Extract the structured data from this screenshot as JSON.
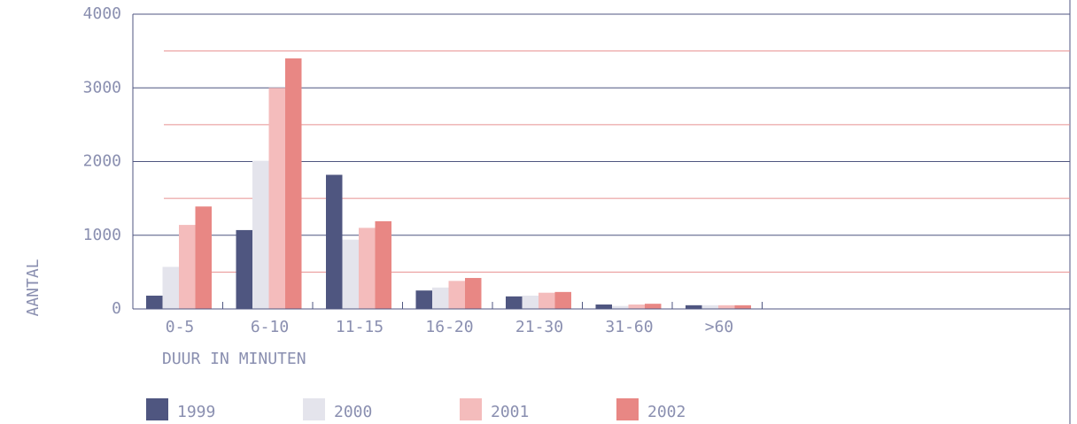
{
  "chart_data": {
    "type": "bar",
    "categories": [
      "0-5",
      "6-10",
      "11-15",
      "16-20",
      "21-30",
      "31-60",
      ">60"
    ],
    "series": [
      {
        "name": "1999",
        "color": "#4f5680",
        "values": [
          180,
          1070,
          1820,
          250,
          170,
          60,
          50
        ]
      },
      {
        "name": "2000",
        "color": "#e4e4ec",
        "values": [
          570,
          2010,
          940,
          290,
          180,
          40,
          50
        ]
      },
      {
        "name": "2001",
        "color": "#f4bcbc",
        "values": [
          1140,
          3000,
          1100,
          380,
          220,
          60,
          50
        ]
      },
      {
        "name": "2002",
        "color": "#e88784",
        "values": [
          1390,
          3400,
          1190,
          420,
          230,
          70,
          50
        ]
      }
    ],
    "ylim": [
      0,
      4000
    ],
    "yticks": [
      0,
      1000,
      2000,
      3000,
      4000
    ],
    "minor_grid": [
      500,
      1500,
      2500,
      3500
    ],
    "grid": true,
    "y_label": "AANTAL",
    "x_label": "DUUR IN MINUTEN",
    "legend": "bottom"
  }
}
